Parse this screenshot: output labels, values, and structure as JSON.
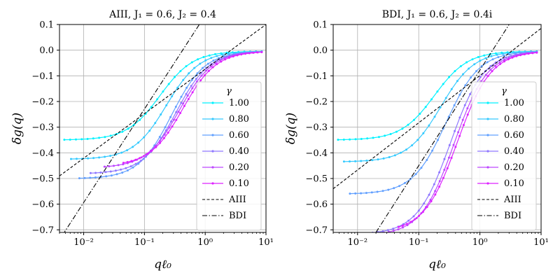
{
  "chart_data": [
    {
      "type": "line",
      "title": "AIII, J₁ = 0.6, J₂ = 0.4",
      "xlabel": "qℓ₀",
      "ylabel": "δg(q)",
      "xscale": "log",
      "xlim": [
        0.004,
        10
      ],
      "ylim": [
        -0.71,
        0.1
      ],
      "x_ticks": [
        0.01,
        0.1,
        1,
        10
      ],
      "x_tick_labels": [
        "10⁻²",
        "10⁻¹",
        "10⁰",
        "10¹"
      ],
      "y_ticks": [
        0.1,
        0.0,
        -0.1,
        -0.2,
        -0.3,
        -0.4,
        -0.5,
        -0.6,
        -0.7
      ],
      "y_tick_labels": [
        "0.1",
        "0.0",
        "−0.1",
        "−0.2",
        "−0.3",
        "−0.4",
        "−0.5",
        "−0.6",
        "−0.7"
      ],
      "grid": true,
      "legend_title": "γ",
      "legend_position": "lower-right",
      "series": [
        {
          "name": "1.00",
          "color": "#00f2ff",
          "x_start": 0.0048,
          "y_start": -0.345,
          "asymptote_shift": 0.0
        },
        {
          "name": "0.80",
          "color": "#35caff",
          "x_start": 0.0062,
          "y_start": -0.42,
          "asymptote_shift": 0.02
        },
        {
          "name": "0.60",
          "color": "#62a0ff",
          "x_start": 0.0085,
          "y_start": -0.495,
          "asymptote_shift": 0.04
        },
        {
          "name": "0.40",
          "color": "#8f77ff",
          "x_start": 0.013,
          "y_start": -0.475,
          "asymptote_shift": 0.06
        },
        {
          "name": "0.20",
          "color": "#bd48ff",
          "x_start": 0.022,
          "y_start": -0.45,
          "asymptote_shift": 0.08
        },
        {
          "name": "0.10",
          "color": "#de22ff",
          "x_start": 0.045,
          "y_start": -0.435,
          "asymptote_shift": 0.1
        }
      ],
      "reference_lines": [
        {
          "name": "AIII",
          "style": "dashed",
          "points": [
            [
              0.004,
              -0.49
            ],
            [
              10,
              0.1
            ]
          ]
        },
        {
          "name": "BDI",
          "style": "dashdot",
          "points": [
            [
              0.0045,
              -0.72
            ],
            [
              10,
              0.5
            ]
          ]
        }
      ]
    },
    {
      "type": "line",
      "title": "BDI, J₁ = 0.6, J₂ = 0.4i",
      "xlabel": "qℓ₀",
      "ylabel": "δg(q)",
      "xscale": "log",
      "xlim": [
        0.004,
        10
      ],
      "ylim": [
        -0.71,
        0.1
      ],
      "x_ticks": [
        0.01,
        0.1,
        1,
        10
      ],
      "x_tick_labels": [
        "10⁻²",
        "10⁻¹",
        "10⁰",
        "10¹"
      ],
      "y_ticks": [
        0.1,
        0.0,
        -0.1,
        -0.2,
        -0.3,
        -0.4,
        -0.5,
        -0.6,
        -0.7
      ],
      "y_tick_labels": [
        "0.1",
        "0.0",
        "−0.1",
        "−0.2",
        "−0.3",
        "−0.4",
        "−0.5",
        "−0.6",
        "−0.7"
      ],
      "grid": true,
      "legend_title": "γ",
      "legend_position": "lower-right",
      "series": [
        {
          "name": "1.00",
          "color": "#00f2ff",
          "x_start": 0.0048,
          "y_start": -0.345,
          "asymptote_shift": 0.0
        },
        {
          "name": "0.80",
          "color": "#35caff",
          "x_start": 0.006,
          "y_start": -0.43,
          "asymptote_shift": 0.02
        },
        {
          "name": "0.60",
          "color": "#62a0ff",
          "x_start": 0.0075,
          "y_start": -0.555,
          "asymptote_shift": 0.04
        },
        {
          "name": "0.40",
          "color": "#8f77ff",
          "x_start": 0.012,
          "y_start": -0.71,
          "asymptote_shift": 0.06
        },
        {
          "name": "0.20",
          "color": "#bd48ff",
          "x_start": 0.023,
          "y_start": -0.71,
          "asymptote_shift": 0.08
        },
        {
          "name": "0.10",
          "color": "#de22ff",
          "x_start": 0.047,
          "y_start": -0.685,
          "asymptote_shift": 0.1
        }
      ],
      "reference_lines": [
        {
          "name": "AIII",
          "style": "dashed",
          "points": [
            [
              0.004,
              -0.54
            ],
            [
              10,
              0.085
            ]
          ]
        },
        {
          "name": "BDI",
          "style": "dashdot",
          "points": [
            [
              0.02,
              -0.71
            ],
            [
              3,
              0.1
            ]
          ]
        }
      ]
    }
  ]
}
